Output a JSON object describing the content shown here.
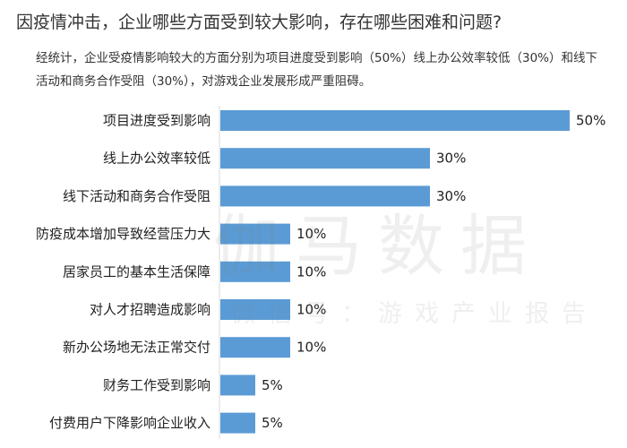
{
  "header": {
    "title": "因疫情冲击，企业哪些方面受到较大影响，存在哪些困难和问题?",
    "subtitle": "经统计，企业受疫情影响较大的方面分别为项目进度受到影响（50%）线上办公效率较低（30%）和线下活动和商务合作受阻（30%），对游戏企业发展形成严重阻碍。"
  },
  "watermark": {
    "main": "伽马数据",
    "sub": "微信号：游戏产业报告"
  },
  "chart_data": {
    "type": "bar",
    "orientation": "horizontal",
    "categories": [
      "项目进度受到影响",
      "线上办公效率较低",
      "线下活动和商务合作受阻",
      "防疫成本增加导致经营压力大",
      "居家员工的基本生活保障",
      "对人才招聘造成影响",
      "新办公场地无法正常交付",
      "财务工作受到影响",
      "付费用户下降影响企业收入"
    ],
    "values": [
      50,
      30,
      30,
      10,
      10,
      10,
      10,
      5,
      5
    ],
    "value_labels": [
      "50%",
      "30%",
      "30%",
      "10%",
      "10%",
      "10%",
      "10%",
      "5%",
      "5%"
    ],
    "unit": "%",
    "xlim": [
      0,
      50
    ],
    "bar_color": "#5b9bd5",
    "grid": false,
    "legend": "none"
  }
}
